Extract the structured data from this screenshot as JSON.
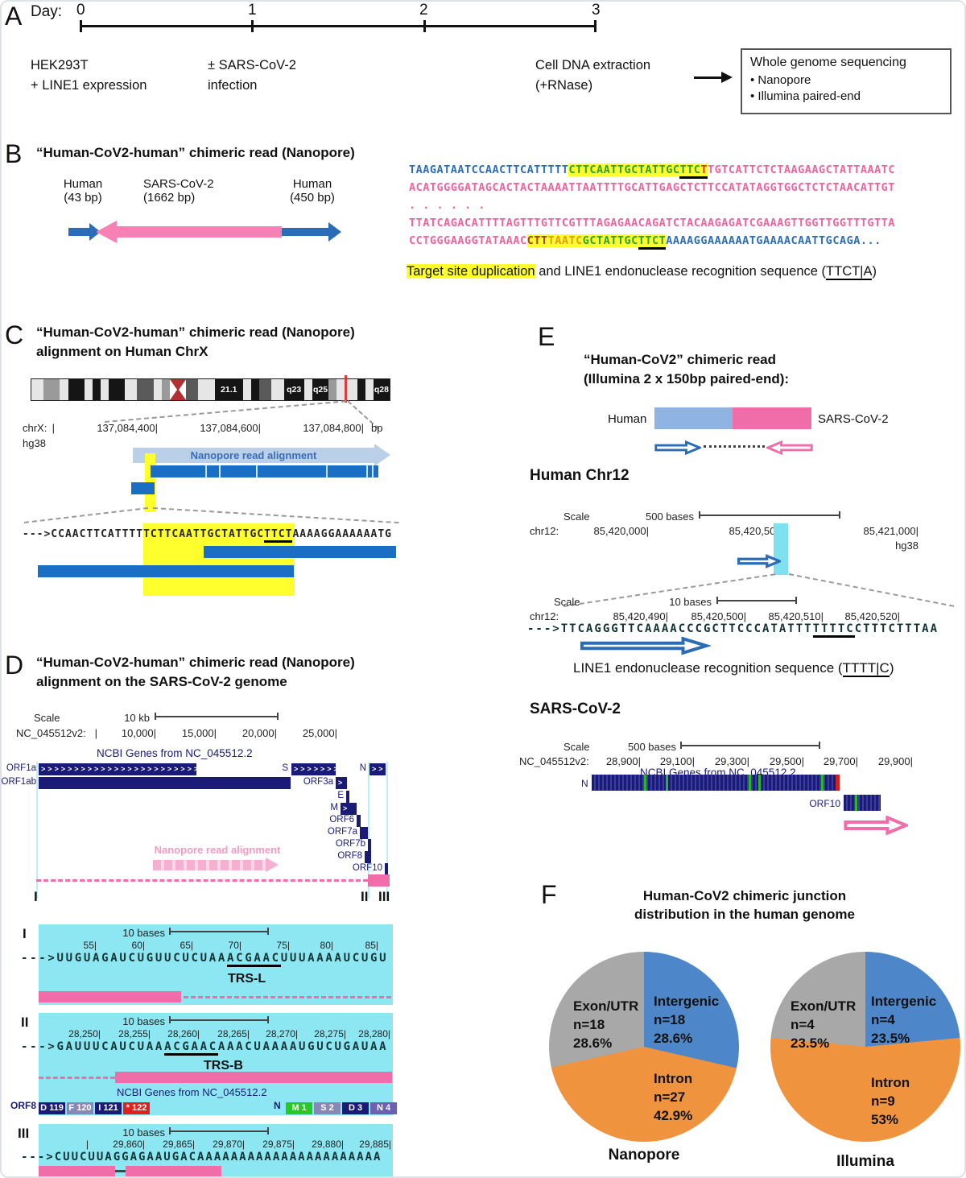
{
  "panelA": {
    "label": "A",
    "day_label": "Day:",
    "timeline_ticks": [
      "0",
      "1",
      "2",
      "3"
    ],
    "events": [
      {
        "line1": "HEK293T",
        "line2": "+ LINE1 expression"
      },
      {
        "line1": "± SARS-CoV-2",
        "line2": "infection"
      },
      {
        "line1": "Cell DNA extraction",
        "line2": "(+RNase)"
      }
    ],
    "wgs_box": {
      "title": "Whole genome sequencing",
      "items": [
        "•  Nanopore",
        "•  Illumina paired-end"
      ]
    }
  },
  "panelB": {
    "label": "B",
    "title": "“Human-CoV2-human” chimeric read (Nanopore)",
    "segments": [
      {
        "name": "Human",
        "size": "(43 bp)"
      },
      {
        "name": "SARS-CoV-2",
        "size": "(1662 bp)"
      },
      {
        "name": "Human",
        "size": "(450 bp)"
      }
    ],
    "seq": {
      "l1": [
        {
          "t": "TAAGATAATCCAACTTCATTTTT",
          "c": "blue"
        },
        {
          "t": "CTTCAATTGCTATTGC",
          "c": "green",
          "hl": true
        },
        {
          "t": "TTC",
          "c": "green",
          "hl": true,
          "u": true
        },
        {
          "t": "T",
          "c": "red",
          "hl": true,
          "u": true
        },
        {
          "t": "TGTCATTCTCTAAGAAGCTATTAAATC",
          "c": "pink"
        }
      ],
      "l2": [
        {
          "t": "ACATGGGGATAGCACTACTAAAATTAATTTTGCATTGAGCTCTTCCATATAGGTGGCTCTCTAACATTGT",
          "c": "pink"
        }
      ],
      "l3": [
        {
          "t": ". . . . . .",
          "c": "pink"
        }
      ],
      "l4": [
        {
          "t": "TTATCAGACATTTTAGTTTGTTCGTTTAGAGAACAGATCTACAAGAGATCGAAAGTTGGTTGGTTTGTTA",
          "c": "pink"
        }
      ],
      "l5": [
        {
          "t": "CCTGGGAAGGTATAAAC",
          "c": "pink"
        },
        {
          "t": "CTT",
          "c": "maroon",
          "hl": true
        },
        {
          "t": "TAATC",
          "c": "orange",
          "hl": true
        },
        {
          "t": "GCTATTGC",
          "c": "green",
          "hl": true
        },
        {
          "t": "TTCT",
          "c": "green",
          "hl": true,
          "u": true
        },
        {
          "t": "AAAAGGAAAAAATGAAAACAATTGCAGA...",
          "c": "blue"
        }
      ]
    },
    "caption": [
      {
        "t": "Target site duplication",
        "hl": true
      },
      {
        "t": " and LINE1 endonuclease recognition sequence ("
      },
      {
        "t": "TTCT|A",
        "u": true
      },
      {
        "t": ")"
      }
    ]
  },
  "panelC": {
    "label": "C",
    "title1": "“Human-CoV2-human” chimeric read (Nanopore)",
    "title2": "alignment on Human ChrX",
    "ideogram": {
      "bands": [
        {
          "w": 3,
          "c": "l"
        },
        {
          "w": 4,
          "c": "m"
        },
        {
          "w": 2,
          "c": "l"
        },
        {
          "w": 4,
          "c": "b"
        },
        {
          "w": 2,
          "c": "l"
        },
        {
          "w": 2,
          "c": "b"
        },
        {
          "w": 2,
          "c": "l"
        },
        {
          "w": 4,
          "c": "b"
        },
        {
          "w": 3,
          "c": "l"
        },
        {
          "w": 4,
          "c": "d"
        },
        {
          "w": 2,
          "c": "l"
        },
        {
          "w": 2,
          "c": "m"
        },
        {
          "w": 4,
          "c": "cen"
        },
        {
          "w": 3,
          "c": "d"
        },
        {
          "w": 4,
          "c": "l"
        },
        {
          "w": 7,
          "c": "b",
          "label": "21.1"
        },
        {
          "w": 2,
          "c": "l"
        },
        {
          "w": 2,
          "c": "b"
        },
        {
          "w": 3,
          "c": "d"
        },
        {
          "w": 3,
          "c": "l"
        },
        {
          "w": 5,
          "c": "b",
          "label": "q23"
        },
        {
          "w": 2,
          "c": "l"
        },
        {
          "w": 4,
          "c": "b",
          "label": "q25"
        },
        {
          "w": 2,
          "c": "m"
        },
        {
          "w": 3,
          "c": "l"
        },
        {
          "w": 2,
          "c": "l"
        },
        {
          "w": 2,
          "c": "b"
        },
        {
          "w": 2,
          "c": "l"
        },
        {
          "w": 4,
          "c": "b",
          "label": "q28"
        }
      ]
    },
    "coords": {
      "chrom": "chrX:",
      "assembly": "hg38",
      "ticks": [
        "|",
        "137,084,400|",
        "137,084,600|",
        "137,084,800|"
      ],
      "unit": "bp"
    },
    "read_arrow_label": "Nanopore read alignment",
    "seq": [
      {
        "t": "--->CCAACTTCATTTTT"
      },
      {
        "t": "CTTCAATTGCTATTGC",
        "hl": true
      },
      {
        "t": "TTCT",
        "hl": true,
        "u": true
      },
      {
        "t": "AAAAGGAAAAAATG"
      }
    ]
  },
  "panelD": {
    "label": "D",
    "title1": "“Human-CoV2-human” chimeric read (Nanopore)",
    "title2": "alignment on the SARS-CoV-2 genome",
    "scale_label": "Scale",
    "scale_value": "10 kb",
    "chrom": "NC_045512v2:",
    "ticks": [
      "|",
      "10,000|",
      "15,000|",
      "20,000|",
      "25,000|"
    ],
    "genes_title": "NCBI Genes from NC_045512.2",
    "genes": {
      "orf1a": "ORF1a",
      "orf1ab": "ORF1ab",
      "s": "S",
      "n": "N",
      "orf3a": "ORF3a",
      "e": "E",
      "m": "M",
      "orf6": "ORF6",
      "orf7a": "ORF7a",
      "orf7b": "ORF7b",
      "orf8": "ORF8",
      "orf10": "ORF10"
    },
    "chev": {
      "orf1a": ">>>>>>>>>>>>>>>>>>>>>>>>>>>>>>",
      "s": ">>>>>>>>",
      "n": ">>",
      "orf3a": ">",
      "m": ">"
    },
    "read_label": "Nanopore read alignment",
    "markers": {
      "m1": "I",
      "m2": "II",
      "m3": "III"
    },
    "s1": {
      "marker": "I",
      "scale_label": "10 bases",
      "ticks": [
        "55|",
        "60|",
        "65|",
        "70|",
        "75|",
        "80|",
        "85|"
      ],
      "seq": [
        {
          "t": "--->UUGUAGAUCUGUUCUCUAA"
        },
        {
          "t": "ACGAAC",
          "u": true
        },
        {
          "t": "UUUAAAAUCUGU"
        }
      ],
      "motif": "TRS-L"
    },
    "s2": {
      "marker": "II",
      "scale_label": "10 bases",
      "ticks": [
        "28,250|",
        "28,255|",
        "28,260|",
        "28,265|",
        "28,270|",
        "28,275|",
        "28,280|"
      ],
      "seq": [
        {
          "t": "--->GAUUUCAUCUAA"
        },
        {
          "t": "ACGAAC",
          "u": true
        },
        {
          "t": "AAACUAAAAUGUCUGAUAA"
        }
      ],
      "motif": "TRS-B",
      "genes_title": "NCBI Genes from NC_045512.2",
      "orf8_label": "ORF8",
      "n_label": "N",
      "aa_left": [
        {
          "t": "D 119",
          "c": "aa-navy"
        },
        {
          "t": "F 120",
          "c": "aa-slate"
        },
        {
          "t": "I 121",
          "c": "aa-navy"
        },
        {
          "t": "* 122",
          "c": "aa-red"
        }
      ],
      "aa_right": [
        {
          "t": "M 1",
          "c": "aa-green"
        },
        {
          "t": "S 2",
          "c": "aa-slate"
        },
        {
          "t": "D 3",
          "c": "aa-navy"
        },
        {
          "t": "N 4",
          "c": "aa-purple"
        }
      ]
    },
    "s3": {
      "marker": "III",
      "scale_label": "10 bases",
      "ticks": [
        "|",
        "29,860|",
        "29,865|",
        "29,870|",
        "29,875|",
        "29,880|",
        "29,885|"
      ],
      "seq": [
        {
          "t": "--->CUUCUUAGGAGAAUGACAAAAAAAAAAAAAAAAAAAAAA"
        }
      ]
    }
  },
  "panelE": {
    "label": "E",
    "title1": "“Human-CoV2” chimeric read",
    "title2": "(Illumina 2 x 150bp paired-end):",
    "read": {
      "left": "Human",
      "right": "SARS-CoV-2"
    },
    "chr12": {
      "heading": "Human Chr12",
      "scale_label": "Scale",
      "scale_value": "500 bases",
      "chrom": "chr12:",
      "ticks": [
        "85,420,000|",
        "85,420,500|",
        "85,421,000|"
      ],
      "assembly": "hg38",
      "zoom": {
        "scale_label": "Scale",
        "scale_value": "10 bases",
        "chrom": "chr12:",
        "ticks": [
          "85,420,490|",
          "85,420,500|",
          "85,420,510|",
          "85,420,520|"
        ],
        "seq": [
          {
            "t": "--->TTCAGGGTTCAAAACCCGCTTCCCATATTT"
          },
          {
            "t": "TTTTC",
            "u": true
          },
          {
            "t": "CTTTCTTTAA"
          }
        ]
      },
      "caption": [
        {
          "t": "LINE1 endonuclease recognition sequence ("
        },
        {
          "t": "TTTT|C",
          "u": true
        },
        {
          "t": ")"
        }
      ]
    },
    "cov2": {
      "heading": "SARS-CoV-2",
      "scale_label": "Scale",
      "scale_value": "500 bases",
      "chrom": "NC_045512v2:",
      "ticks": [
        "28,900|",
        "29,100|",
        "29,300|",
        "29,500|",
        "29,700|",
        "29,900|"
      ],
      "genes_title": "NCBI Genes from NC_045512.2",
      "n_label": "N",
      "orf10_label": "ORF10"
    }
  },
  "panelF": {
    "label": "F",
    "title1": "Human-CoV2 chimeric junction",
    "title2": "distribution in the human genome"
  },
  "chart_data": [
    {
      "type": "pie",
      "name": "Nanopore",
      "title": "Human-CoV2 chimeric junction distribution in the human genome",
      "slices": [
        {
          "label": "Intergenic",
          "n": 18,
          "n_text": "n=18",
          "pct": "28.6%",
          "value": 28.6,
          "color": "#4e87c9"
        },
        {
          "label": "Intron",
          "n": 27,
          "n_text": "n=27",
          "pct": "42.9%",
          "value": 42.9,
          "color": "#f0933f"
        },
        {
          "label": "Exon/UTR",
          "n": 18,
          "n_text": "n=18",
          "pct": "28.6%",
          "value": 28.6,
          "color": "#a8a8a8"
        }
      ]
    },
    {
      "type": "pie",
      "name": "Illumina",
      "title": "Human-CoV2 chimeric junction distribution in the human genome",
      "slices": [
        {
          "label": "Intergenic",
          "n": 4,
          "n_text": "n=4",
          "pct": "23.5%",
          "value": 23.5,
          "color": "#4e87c9"
        },
        {
          "label": "Intron",
          "n": 9,
          "n_text": "n=9",
          "pct": "53%",
          "value": 53,
          "color": "#f0933f"
        },
        {
          "label": "Exon/UTR",
          "n": 4,
          "n_text": "n=4",
          "pct": "23.5%",
          "value": 23.5,
          "color": "#a8a8a8"
        }
      ]
    }
  ]
}
